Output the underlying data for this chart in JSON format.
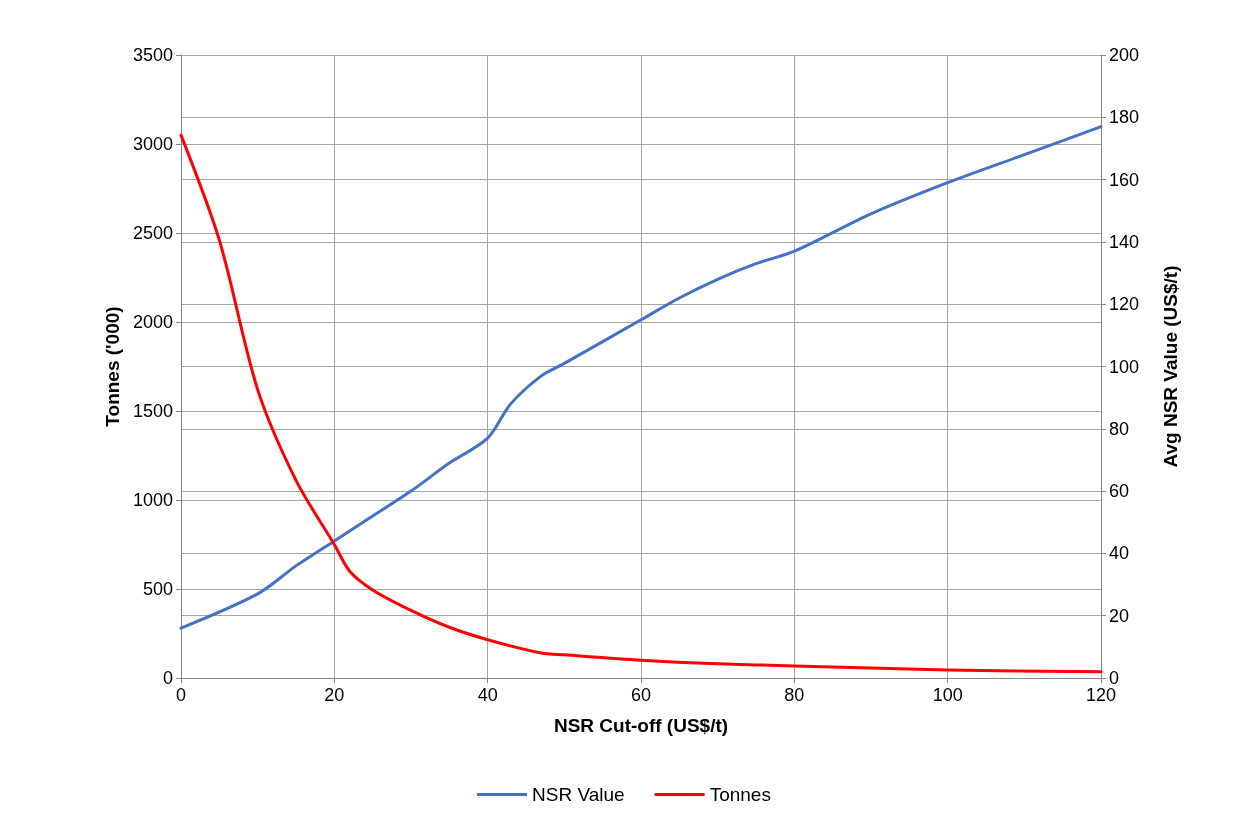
{
  "chart_data": {
    "type": "line",
    "xlabel": "NSR Cut-off (US$/t)",
    "ylabel": "Tonnes ('000)",
    "y2label": "Avg NSR Value (US$/t)",
    "xlim": [
      0,
      120
    ],
    "xticks": [
      0,
      20,
      40,
      60,
      80,
      100,
      120
    ],
    "ylim": [
      0,
      3500
    ],
    "yticks": [
      0,
      500,
      1000,
      1500,
      2000,
      2500,
      3000,
      3500
    ],
    "y2lim": [
      0,
      200
    ],
    "y2ticks": [
      0,
      20,
      40,
      60,
      80,
      100,
      120,
      140,
      160,
      180,
      200
    ],
    "grid": true,
    "legend": "bottom",
    "marker": "none",
    "line_style": "solid",
    "series": [
      {
        "name": "NSR Value",
        "color": "#4472c4",
        "axis": "y2",
        "x": [
          0,
          10,
          15,
          20,
          25,
          30,
          35,
          40,
          43,
          47,
          50,
          60,
          65,
          70,
          75,
          80,
          90,
          100,
          110,
          120
        ],
        "values": [
          16,
          27,
          36,
          44,
          52,
          60,
          69,
          77,
          88,
          97,
          101,
          115,
          122,
          128,
          133,
          137,
          149,
          159,
          168,
          177
        ]
      },
      {
        "name": "Tonnes",
        "color": "#ff0000",
        "x": [
          0,
          5,
          10,
          15,
          20,
          22,
          25,
          30,
          35,
          40,
          47,
          50,
          60,
          70,
          80,
          100,
          120
        ],
        "values": [
          3050,
          2460,
          1620,
          1110,
          750,
          600,
          495,
          380,
          285,
          215,
          140,
          130,
          100,
          80,
          68,
          45,
          35
        ]
      }
    ]
  }
}
